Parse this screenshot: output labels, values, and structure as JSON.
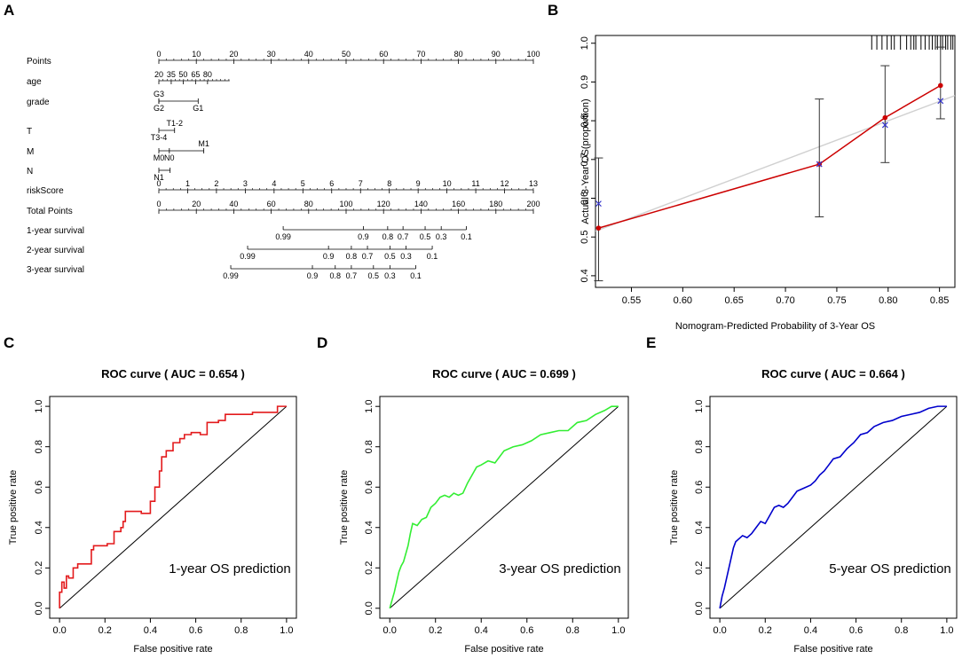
{
  "panels": {
    "A": "A",
    "B": "B",
    "C": "C",
    "D": "D",
    "E": "E"
  },
  "nomogram": {
    "rows": [
      {
        "label": "Points",
        "ticks": [
          {
            "v": 0,
            "label": "0"
          },
          {
            "v": 10,
            "label": "10"
          },
          {
            "v": 20,
            "label": "20"
          },
          {
            "v": 30,
            "label": "30"
          },
          {
            "v": 40,
            "label": "40"
          },
          {
            "v": 50,
            "label": "50"
          },
          {
            "v": 60,
            "label": "60"
          },
          {
            "v": 70,
            "label": "70"
          },
          {
            "v": 80,
            "label": "80"
          },
          {
            "v": 90,
            "label": "90"
          },
          {
            "v": 100,
            "label": "100"
          }
        ],
        "minor_step": 2
      },
      {
        "label": "age",
        "ticks": [
          {
            "v": 0,
            "label": "20"
          },
          {
            "v": 3.3,
            "label": "35"
          },
          {
            "v": 6.5,
            "label": "50"
          },
          {
            "v": 9.8,
            "label": "65"
          },
          {
            "v": 13,
            "label": "80"
          }
        ],
        "minor_step": 1.1,
        "end": 18.9
      },
      {
        "label": "grade",
        "cats": [
          {
            "v": 0,
            "label": "G3",
            "pos": "above"
          },
          {
            "v": 0,
            "label": "G2",
            "pos": "below"
          },
          {
            "v": 10.5,
            "label": "G1",
            "pos": "below"
          }
        ]
      },
      {
        "label": "T",
        "cats": [
          {
            "v": 4.2,
            "label": "T1-2",
            "pos": "above"
          },
          {
            "v": 0,
            "label": "T3-4",
            "pos": "below"
          }
        ]
      },
      {
        "label": "M",
        "cats": [
          {
            "v": 12,
            "label": "M1",
            "pos": "above"
          },
          {
            "v": 0,
            "label": "M0",
            "pos": "below"
          },
          {
            "v": 2.8,
            "label": "N0",
            "pos": "below"
          }
        ]
      },
      {
        "label": "N",
        "cats": [
          {
            "v": 0,
            "label": "N1",
            "pos": "below"
          },
          {
            "v": 3,
            "label": "",
            "pos": "below"
          }
        ]
      },
      {
        "label": "riskScore",
        "ticks": [
          {
            "v": 0,
            "label": "0"
          },
          {
            "v": 7.69,
            "label": "1"
          },
          {
            "v": 15.38,
            "label": "2"
          },
          {
            "v": 23.08,
            "label": "3"
          },
          {
            "v": 30.77,
            "label": "4"
          },
          {
            "v": 38.46,
            "label": "5"
          },
          {
            "v": 46.15,
            "label": "6"
          },
          {
            "v": 53.85,
            "label": "7"
          },
          {
            "v": 61.54,
            "label": "8"
          },
          {
            "v": 69.23,
            "label": "9"
          },
          {
            "v": 76.92,
            "label": "10"
          },
          {
            "v": 84.62,
            "label": "11"
          },
          {
            "v": 92.31,
            "label": "12"
          },
          {
            "v": 100,
            "label": "13"
          }
        ],
        "minor_step": 1.923
      },
      {
        "label": "Total Points",
        "ticks": [
          {
            "v": 0,
            "label": "0"
          },
          {
            "v": 10,
            "label": "20"
          },
          {
            "v": 20,
            "label": "40"
          },
          {
            "v": 30,
            "label": "60"
          },
          {
            "v": 40,
            "label": "80"
          },
          {
            "v": 50,
            "label": "100"
          },
          {
            "v": 60,
            "label": "120"
          },
          {
            "v": 70,
            "label": "140"
          },
          {
            "v": 80,
            "label": "160"
          },
          {
            "v": 90,
            "label": "180"
          },
          {
            "v": 100,
            "label": "200"
          }
        ],
        "minor_step": 2
      },
      {
        "label": "1-year survival",
        "below": true,
        "ticks": [
          {
            "v": 33.2,
            "label": "0.99"
          },
          {
            "v": 54.6,
            "label": "0.9"
          },
          {
            "v": 61.1,
            "label": "0.8"
          },
          {
            "v": 65.2,
            "label": "0.7"
          },
          {
            "v": 71.1,
            "label": "0.5"
          },
          {
            "v": 75.4,
            "label": "0.3"
          },
          {
            "v": 82.1,
            "label": "0.1"
          }
        ]
      },
      {
        "label": "2-year survival",
        "below": true,
        "ticks": [
          {
            "v": 23.7,
            "label": "0.99"
          },
          {
            "v": 45.3,
            "label": "0.9"
          },
          {
            "v": 51.4,
            "label": "0.8"
          },
          {
            "v": 55.7,
            "label": "0.7"
          },
          {
            "v": 61.7,
            "label": "0.5"
          },
          {
            "v": 66.0,
            "label": "0.3"
          },
          {
            "v": 73.0,
            "label": "0.1"
          }
        ]
      },
      {
        "label": "3-year survival",
        "below": true,
        "ticks": [
          {
            "v": 19.2,
            "label": "0.99"
          },
          {
            "v": 41.0,
            "label": "0.9"
          },
          {
            "v": 47.1,
            "label": "0.8"
          },
          {
            "v": 51.4,
            "label": "0.7"
          },
          {
            "v": 57.3,
            "label": "0.5"
          },
          {
            "v": 61.7,
            "label": "0.3"
          },
          {
            "v": 68.6,
            "label": "0.1"
          }
        ]
      }
    ]
  },
  "chart_data": [
    {
      "type": "scatter",
      "panel": "B",
      "title": "",
      "xlabel": "Nomogram-Predicted Probability of 3-Year OS",
      "ylabel": "Actual 3-Year OS(proportion)",
      "xlim": [
        0.515,
        0.865
      ],
      "ylim": [
        0.37,
        1.02
      ],
      "xticks": [
        0.55,
        0.6,
        0.65,
        0.7,
        0.75,
        0.8,
        0.85
      ],
      "xtick_labels": [
        "0.55",
        "0.60",
        "0.65",
        "0.70",
        "0.75",
        "0.80",
        "0.85"
      ],
      "yticks": [
        0.4,
        0.5,
        0.6,
        0.7,
        0.8,
        0.9,
        1.0
      ],
      "ytick_labels": [
        "0.4",
        "0.5",
        "0.6",
        "0.7",
        "0.8",
        "0.9",
        "1.0"
      ],
      "ideal_line": [
        [
          0.515,
          0.515
        ],
        [
          0.865,
          0.865
        ]
      ],
      "observed": {
        "x": [
          0.518,
          0.733,
          0.797,
          0.851
        ],
        "y": [
          0.523,
          0.688,
          0.808,
          0.891
        ],
        "ci_low": [
          0.387,
          0.552,
          0.692,
          0.805
        ],
        "ci_high": [
          0.704,
          0.856,
          0.942,
          0.99
        ],
        "color": "#cc0000"
      },
      "corrected": {
        "x": [
          0.518,
          0.733,
          0.797,
          0.851
        ],
        "y": [
          0.586,
          0.688,
          0.789,
          0.851
        ],
        "color": "#3333cc"
      },
      "rug_x": [
        0.784,
        0.789,
        0.794,
        0.799,
        0.803,
        0.806,
        0.812,
        0.818,
        0.822,
        0.825,
        0.827,
        0.832,
        0.836,
        0.84,
        0.843,
        0.846,
        0.848,
        0.851,
        0.853,
        0.856,
        0.858,
        0.861,
        0.863
      ]
    },
    {
      "type": "line",
      "panel": "C",
      "title": "ROC curve ( AUC =  0.654 )",
      "annotation": "1-year OS prediction",
      "xlabel": "False positive rate",
      "ylabel": "True positive rate",
      "xlim": [
        0,
        1
      ],
      "ylim": [
        0,
        1
      ],
      "color": "#e31a1c",
      "ticks": [
        0,
        0.2,
        0.4,
        0.6,
        0.8,
        1
      ],
      "tick_labels": [
        "0.0",
        "0.2",
        "0.4",
        "0.6",
        "0.8",
        "1.0"
      ],
      "x": [
        0.0,
        0.0,
        0.01,
        0.01,
        0.02,
        0.02,
        0.03,
        0.03,
        0.04,
        0.04,
        0.06,
        0.06,
        0.08,
        0.08,
        0.14,
        0.14,
        0.15,
        0.15,
        0.21,
        0.21,
        0.24,
        0.24,
        0.27,
        0.27,
        0.28,
        0.28,
        0.29,
        0.29,
        0.36,
        0.36,
        0.4,
        0.4,
        0.42,
        0.42,
        0.44,
        0.44,
        0.45,
        0.45,
        0.47,
        0.47,
        0.5,
        0.5,
        0.53,
        0.53,
        0.55,
        0.55,
        0.58,
        0.58,
        0.62,
        0.62,
        0.65,
        0.65,
        0.7,
        0.7,
        0.73,
        0.73,
        0.78,
        0.78,
        0.85,
        0.85,
        0.96,
        0.96,
        1.0,
        1.0
      ],
      "y": [
        0.0,
        0.08,
        0.08,
        0.13,
        0.13,
        0.1,
        0.1,
        0.16,
        0.16,
        0.15,
        0.15,
        0.2,
        0.2,
        0.22,
        0.22,
        0.29,
        0.29,
        0.31,
        0.31,
        0.32,
        0.32,
        0.38,
        0.38,
        0.4,
        0.4,
        0.43,
        0.43,
        0.48,
        0.48,
        0.47,
        0.47,
        0.53,
        0.53,
        0.6,
        0.6,
        0.68,
        0.68,
        0.75,
        0.75,
        0.78,
        0.78,
        0.82,
        0.82,
        0.84,
        0.84,
        0.86,
        0.86,
        0.87,
        0.87,
        0.86,
        0.86,
        0.92,
        0.92,
        0.93,
        0.93,
        0.96,
        0.96,
        0.96,
        0.96,
        0.97,
        0.97,
        1.0,
        1.0,
        1.0
      ]
    },
    {
      "type": "line",
      "panel": "D",
      "title": "ROC curve ( AUC =  0.699 )",
      "annotation": "3-year OS prediction",
      "xlabel": "False positive rate",
      "ylabel": "True positive rate",
      "xlim": [
        0,
        1
      ],
      "ylim": [
        0,
        1
      ],
      "color": "#33ee33",
      "ticks": [
        0,
        0.2,
        0.4,
        0.6,
        0.8,
        1
      ],
      "tick_labels": [
        "0.0",
        "0.2",
        "0.4",
        "0.6",
        "0.8",
        "1.0"
      ],
      "x": [
        0.0,
        0.01,
        0.02,
        0.03,
        0.04,
        0.05,
        0.06,
        0.07,
        0.08,
        0.09,
        0.1,
        0.12,
        0.14,
        0.16,
        0.18,
        0.2,
        0.22,
        0.24,
        0.26,
        0.28,
        0.3,
        0.32,
        0.34,
        0.36,
        0.38,
        0.4,
        0.43,
        0.46,
        0.5,
        0.54,
        0.58,
        0.62,
        0.66,
        0.7,
        0.74,
        0.78,
        0.82,
        0.86,
        0.9,
        0.94,
        0.97,
        1.0
      ],
      "y": [
        0.0,
        0.04,
        0.08,
        0.13,
        0.18,
        0.21,
        0.23,
        0.27,
        0.31,
        0.37,
        0.42,
        0.41,
        0.44,
        0.45,
        0.5,
        0.52,
        0.55,
        0.56,
        0.55,
        0.57,
        0.56,
        0.57,
        0.62,
        0.66,
        0.7,
        0.71,
        0.73,
        0.72,
        0.78,
        0.8,
        0.81,
        0.83,
        0.86,
        0.87,
        0.88,
        0.88,
        0.92,
        0.93,
        0.96,
        0.98,
        1.0,
        1.0
      ]
    },
    {
      "type": "line",
      "panel": "E",
      "title": "ROC curve ( AUC =  0.664 )",
      "annotation": "5-year OS prediction",
      "xlabel": "False positive rate",
      "ylabel": "True positive rate",
      "xlim": [
        0,
        1
      ],
      "ylim": [
        0,
        1
      ],
      "color": "#0000cc",
      "ticks": [
        0,
        0.2,
        0.4,
        0.6,
        0.8,
        1
      ],
      "tick_labels": [
        "0.0",
        "0.2",
        "0.4",
        "0.6",
        "0.8",
        "1.0"
      ],
      "x": [
        0.0,
        0.01,
        0.02,
        0.03,
        0.04,
        0.05,
        0.06,
        0.07,
        0.08,
        0.1,
        0.12,
        0.14,
        0.16,
        0.18,
        0.2,
        0.22,
        0.24,
        0.26,
        0.28,
        0.3,
        0.32,
        0.34,
        0.36,
        0.38,
        0.4,
        0.42,
        0.44,
        0.46,
        0.48,
        0.5,
        0.53,
        0.56,
        0.59,
        0.62,
        0.65,
        0.68,
        0.72,
        0.76,
        0.8,
        0.84,
        0.88,
        0.92,
        0.96,
        1.0
      ],
      "y": [
        0.0,
        0.06,
        0.1,
        0.15,
        0.2,
        0.25,
        0.3,
        0.33,
        0.34,
        0.36,
        0.35,
        0.37,
        0.4,
        0.43,
        0.42,
        0.46,
        0.5,
        0.51,
        0.5,
        0.52,
        0.55,
        0.58,
        0.59,
        0.6,
        0.61,
        0.63,
        0.66,
        0.68,
        0.71,
        0.74,
        0.75,
        0.79,
        0.82,
        0.86,
        0.87,
        0.9,
        0.92,
        0.93,
        0.95,
        0.96,
        0.97,
        0.99,
        1.0,
        1.0
      ]
    }
  ]
}
